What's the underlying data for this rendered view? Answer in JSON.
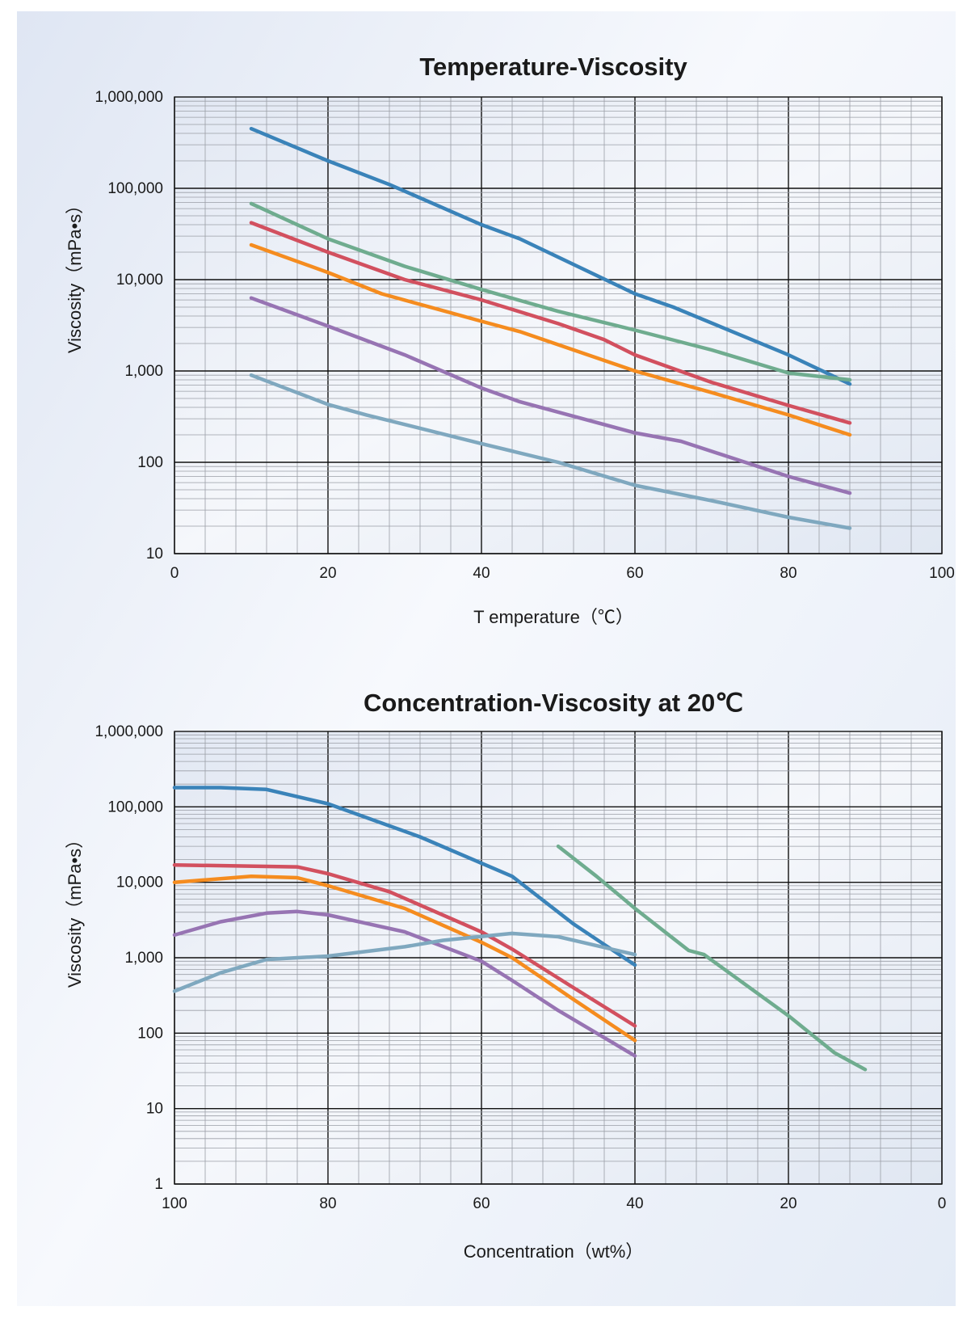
{
  "colors": {
    "blue": "#3a83b9",
    "green": "#6fac8f",
    "red": "#d2505f",
    "orange": "#f58c1f",
    "purple": "#9774b3",
    "lightblue": "#7fa8bf"
  },
  "chart_data": [
    {
      "type": "line",
      "title": "Temperature-Viscosity",
      "xlabel": "T emperature（℃）",
      "ylabel": "Viscosity（mPa•s）",
      "xlim": [
        0,
        100
      ],
      "ylim": [
        10,
        1000000
      ],
      "yscale": "log",
      "grid": true,
      "x_ticks": [
        "0",
        "20",
        "40",
        "60",
        "80",
        "100"
      ],
      "y_ticks": [
        "10",
        "100",
        "1,000",
        "10,000",
        "100,000",
        "1,000,000"
      ],
      "series": [
        {
          "color": "blue",
          "points": [
            [
              10,
              450000
            ],
            [
              20,
              200000
            ],
            [
              28,
              110000
            ],
            [
              40,
              40000
            ],
            [
              45,
              28000
            ],
            [
              60,
              7000
            ],
            [
              65,
              5000
            ],
            [
              80,
              1500
            ],
            [
              88,
              720
            ]
          ]
        },
        {
          "color": "green",
          "points": [
            [
              10,
              68000
            ],
            [
              20,
              28000
            ],
            [
              30,
              14000
            ],
            [
              40,
              7800
            ],
            [
              50,
              4500
            ],
            [
              60,
              2800
            ],
            [
              70,
              1700
            ],
            [
              80,
              950
            ],
            [
              88,
              800
            ]
          ]
        },
        {
          "color": "red",
          "points": [
            [
              10,
              42000
            ],
            [
              20,
              20000
            ],
            [
              30,
              10000
            ],
            [
              40,
              6000
            ],
            [
              50,
              3300
            ],
            [
              56,
              2200
            ],
            [
              60,
              1500
            ],
            [
              70,
              750
            ],
            [
              80,
              420
            ],
            [
              88,
              270
            ]
          ]
        },
        {
          "color": "orange",
          "points": [
            [
              10,
              24000
            ],
            [
              20,
              12000
            ],
            [
              27,
              7000
            ],
            [
              40,
              3500
            ],
            [
              45,
              2700
            ],
            [
              60,
              1000
            ],
            [
              70,
              580
            ],
            [
              80,
              330
            ],
            [
              88,
              200
            ]
          ]
        },
        {
          "color": "purple",
          "points": [
            [
              10,
              6300
            ],
            [
              20,
              3100
            ],
            [
              30,
              1500
            ],
            [
              40,
              650
            ],
            [
              45,
              460
            ],
            [
              60,
              210
            ],
            [
              66,
              170
            ],
            [
              80,
              70
            ],
            [
              88,
              46
            ]
          ]
        },
        {
          "color": "lightblue",
          "points": [
            [
              10,
              900
            ],
            [
              20,
              430
            ],
            [
              25,
              330
            ],
            [
              40,
              160
            ],
            [
              50,
              100
            ],
            [
              60,
              56
            ],
            [
              70,
              38
            ],
            [
              80,
              25
            ],
            [
              88,
              19
            ]
          ]
        }
      ]
    },
    {
      "type": "line",
      "title": "Concentration-Viscosity at 20℃",
      "xlabel": "Concentration（wt%）",
      "ylabel": "Viscosity（mPa•s）",
      "xlim": [
        100,
        0
      ],
      "ylim": [
        1,
        1000000
      ],
      "yscale": "log",
      "grid": true,
      "x_ticks": [
        "100",
        "80",
        "60",
        "40",
        "20",
        "0"
      ],
      "y_ticks": [
        "1",
        "10",
        "100",
        "1,000",
        "10,000",
        "100,000",
        "1,000,000"
      ],
      "series": [
        {
          "color": "blue",
          "points": [
            [
              100,
              180000
            ],
            [
              94,
              180000
            ],
            [
              88,
              170000
            ],
            [
              80,
              110000
            ],
            [
              68,
              40000
            ],
            [
              56,
              12000
            ],
            [
              48,
              2800
            ],
            [
              40,
              800
            ]
          ]
        },
        {
          "color": "green",
          "points": [
            [
              50,
              30000
            ],
            [
              45,
              12000
            ],
            [
              40,
              4500
            ],
            [
              35,
              1800
            ],
            [
              33,
              1250
            ],
            [
              31,
              1100
            ],
            [
              20,
              170
            ],
            [
              14,
              55
            ],
            [
              10,
              33
            ]
          ]
        },
        {
          "color": "red",
          "points": [
            [
              100,
              17000
            ],
            [
              84,
              16000
            ],
            [
              80,
              13000
            ],
            [
              72,
              7500
            ],
            [
              60,
              2200
            ],
            [
              56,
              1300
            ],
            [
              48,
              400
            ],
            [
              40,
              125
            ]
          ]
        },
        {
          "color": "orange",
          "points": [
            [
              100,
              10000
            ],
            [
              90,
              12000
            ],
            [
              84,
              11500
            ],
            [
              80,
              9000
            ],
            [
              70,
              4500
            ],
            [
              60,
              1600
            ],
            [
              56,
              1000
            ],
            [
              48,
              280
            ],
            [
              40,
              80
            ]
          ]
        },
        {
          "color": "purple",
          "points": [
            [
              100,
              2000
            ],
            [
              94,
              3000
            ],
            [
              88,
              3900
            ],
            [
              84,
              4100
            ],
            [
              80,
              3700
            ],
            [
              70,
              2200
            ],
            [
              60,
              900
            ],
            [
              56,
              500
            ],
            [
              50,
              200
            ],
            [
              40,
              50
            ]
          ]
        },
        {
          "color": "lightblue",
          "points": [
            [
              100,
              360
            ],
            [
              94,
              630
            ],
            [
              88,
              950
            ],
            [
              80,
              1050
            ],
            [
              70,
              1400
            ],
            [
              65,
              1700
            ],
            [
              56,
              2100
            ],
            [
              50,
              1900
            ],
            [
              40,
              1100
            ]
          ]
        }
      ]
    }
  ]
}
